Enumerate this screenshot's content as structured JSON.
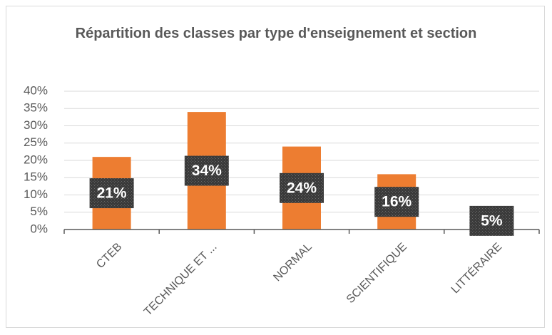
{
  "chart_data": {
    "type": "bar",
    "title": "Répartition des classes par type d'enseignement et section",
    "categories": [
      "CTEB",
      "TECHNIQUE ET ...",
      "NORMAL",
      "SCIENTIFIQUE",
      "LITTÉRAIRE"
    ],
    "values": [
      21,
      34,
      24,
      16,
      5
    ],
    "value_labels": [
      "21%",
      "34%",
      "24%",
      "16%",
      "5%"
    ],
    "color": "#ed7d31",
    "ylim": [
      0,
      40
    ],
    "yticks": [
      {
        "value": 0,
        "label": "0%"
      },
      {
        "value": 5,
        "label": "5%"
      },
      {
        "value": 10,
        "label": "10%"
      },
      {
        "value": 15,
        "label": "15%"
      },
      {
        "value": 20,
        "label": "20%"
      },
      {
        "value": 25,
        "label": "25%"
      },
      {
        "value": 30,
        "label": "30%"
      },
      {
        "value": 35,
        "label": "35%"
      },
      {
        "value": 40,
        "label": "40%"
      }
    ],
    "grid": true
  }
}
